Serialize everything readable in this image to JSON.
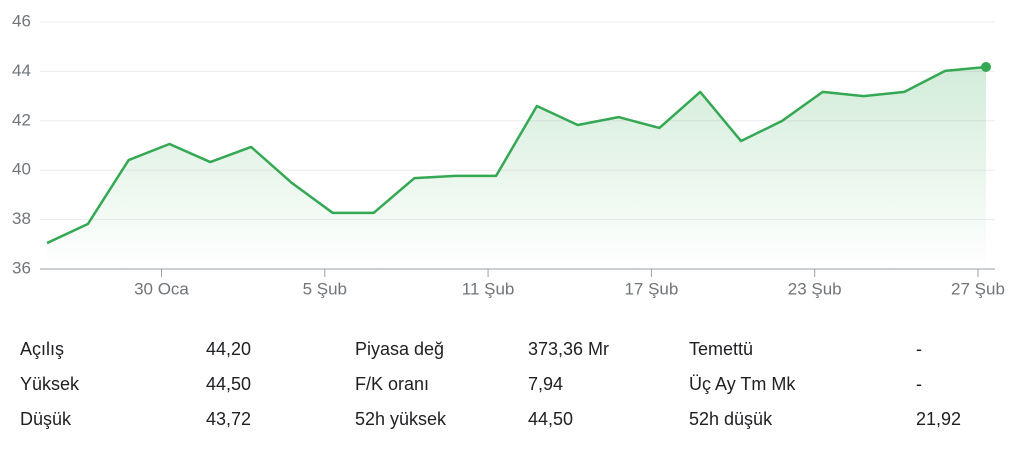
{
  "chart_data": {
    "type": "line",
    "categories": [
      null,
      null,
      null,
      "30 Oca",
      null,
      null,
      null,
      "5 Şub",
      null,
      null,
      null,
      "11 Şub",
      null,
      null,
      null,
      "17 Şub",
      null,
      null,
      null,
      "23 Şub",
      null,
      null,
      null,
      "27 Şub"
    ],
    "series": [
      {
        "color": "#34a853",
        "values": [
          37.05,
          37.82,
          40.41,
          41.06,
          40.33,
          40.94,
          39.48,
          38.27,
          38.27,
          39.68,
          39.77,
          39.77,
          42.6,
          41.83,
          42.15,
          41.71,
          43.17,
          41.18,
          41.99,
          43.17,
          43.0,
          43.17,
          44.02,
          44.18
        ]
      }
    ],
    "ylim": [
      36,
      46
    ],
    "yticks": [
      36,
      38,
      40,
      42,
      44,
      46
    ],
    "grid": true
  },
  "stats": {
    "rows": [
      [
        "Açılış",
        "44,20",
        "Piyasa değ",
        "373,36 Mr",
        "Temettü",
        "-"
      ],
      [
        "Yüksek",
        "44,50",
        "F/K oranı",
        "7,94",
        "Üç Ay Tm Mk",
        "-"
      ],
      [
        "Düşük",
        "43,72",
        "52h yüksek",
        "44,50",
        "52h düşük",
        "21,92"
      ]
    ]
  }
}
